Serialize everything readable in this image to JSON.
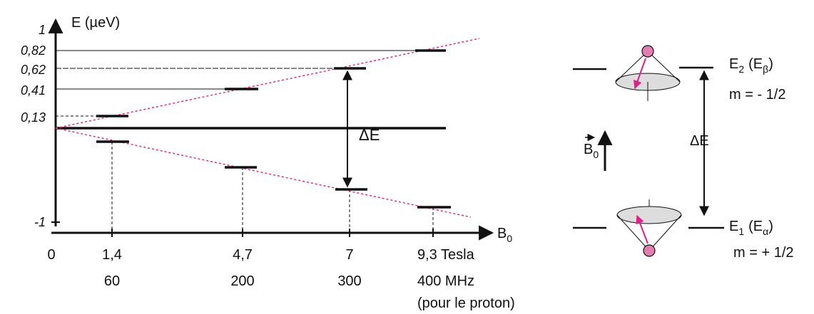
{
  "energy_plot": {
    "y_axis_label": "E (µeV)",
    "y_ticks": [
      "1",
      "0,82",
      "0,62",
      "0,41",
      "0,13",
      "-1"
    ],
    "x_axis_label": {
      "symbol": "B",
      "sub": "0"
    },
    "field_ticks": [
      "0",
      "1,4",
      "4,7",
      "7",
      "9,3 Tesla"
    ],
    "frequency_ticks": [
      "60",
      "200",
      "300",
      "400 MHz"
    ],
    "frequency_note": "(pour le proton)",
    "gap_label": "ΔE"
  },
  "spin_diagram": {
    "field_label": {
      "symbol": "B",
      "sub": "0"
    },
    "gap_label": "ΔE",
    "upper_level": {
      "name": "E",
      "sub": "2",
      "alt": "(E",
      "alt_sub": "β",
      "close": ")",
      "m": "m = - 1/2"
    },
    "lower_level": {
      "name": "E",
      "sub": "1",
      "alt": "(E",
      "alt_sub": "α",
      "close": ")",
      "m": "m = + 1/2"
    }
  }
}
